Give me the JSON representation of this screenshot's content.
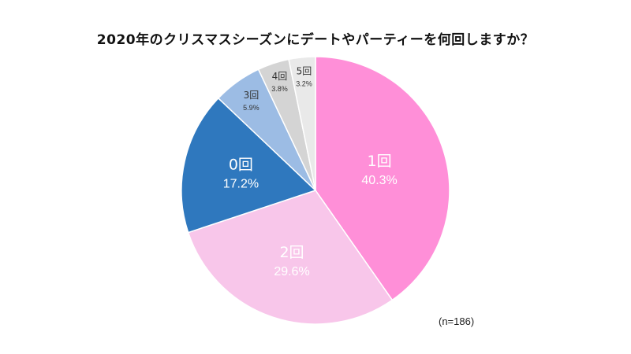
{
  "chart_data": {
    "type": "pie",
    "title": "2020年のクリスマスシーズンにデートやパーティーを何回しますか？",
    "note": "(n=186)",
    "slices": [
      {
        "label": "1回",
        "value": 40.3,
        "value_label": "40.3%",
        "color": "#FF8FD8",
        "label_color": "#ffffff"
      },
      {
        "label": "2回",
        "value": 29.6,
        "value_label": "29.6%",
        "color": "#F8C6EA",
        "label_color": "#ffffff"
      },
      {
        "label": "0回",
        "value": 17.2,
        "value_label": "17.2%",
        "color": "#2F78BE",
        "label_color": "#ffffff"
      },
      {
        "label": "3回",
        "value": 5.9,
        "value_label": "5.9%",
        "color": "#9CBCE4",
        "label_color": "#333333"
      },
      {
        "label": "4回",
        "value": 3.8,
        "value_label": "3.8%",
        "color": "#D4D4D4",
        "label_color": "#333333"
      },
      {
        "label": "5回",
        "value": 3.2,
        "value_label": "3.2%",
        "color": "#E9E9E9",
        "label_color": "#333333"
      }
    ]
  }
}
